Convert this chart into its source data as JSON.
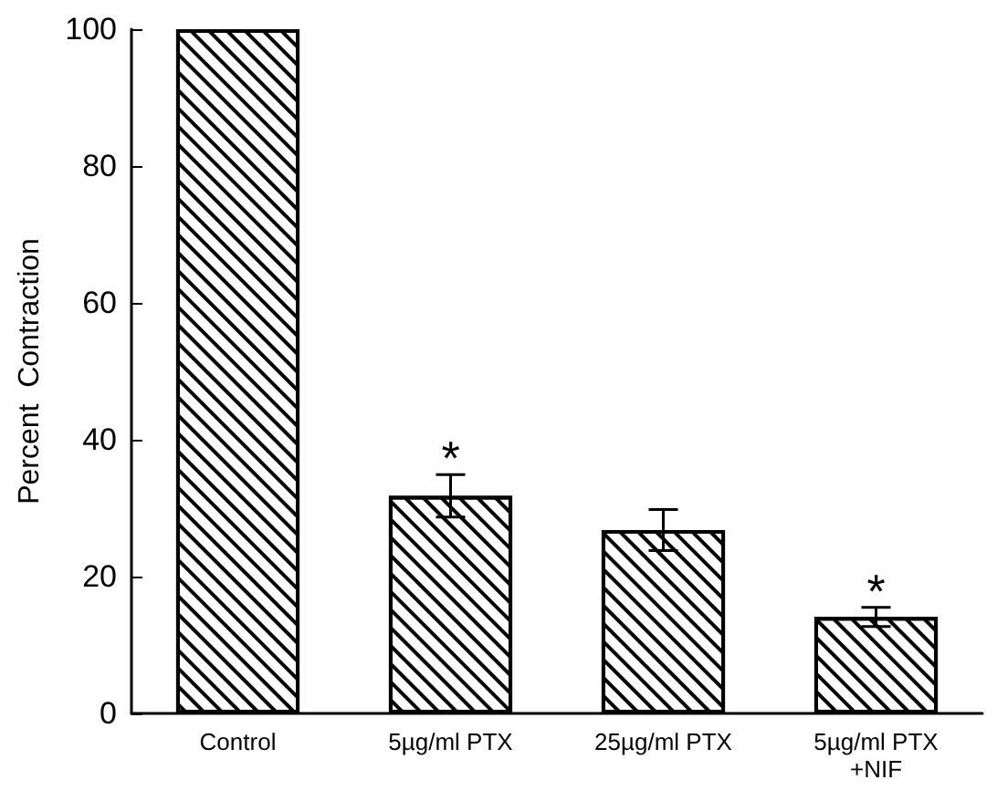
{
  "chart_data": {
    "type": "bar",
    "ylabel": "Percent  Contraction",
    "categories": [
      "Control",
      "5µg/ml PTX",
      "25µg/ml PTX",
      "5µg/ml PTX\n+NIF"
    ],
    "values": [
      100,
      31.8,
      26.8,
      14.1
    ],
    "errors": [
      null,
      3.1,
      3.0,
      1.4
    ],
    "color": "#ffffff",
    "ylim": [
      0,
      100
    ],
    "yticks": [
      0,
      20,
      40,
      60,
      80,
      100
    ],
    "grid": false,
    "value_labels": [
      null,
      "*",
      null,
      "*"
    ]
  }
}
